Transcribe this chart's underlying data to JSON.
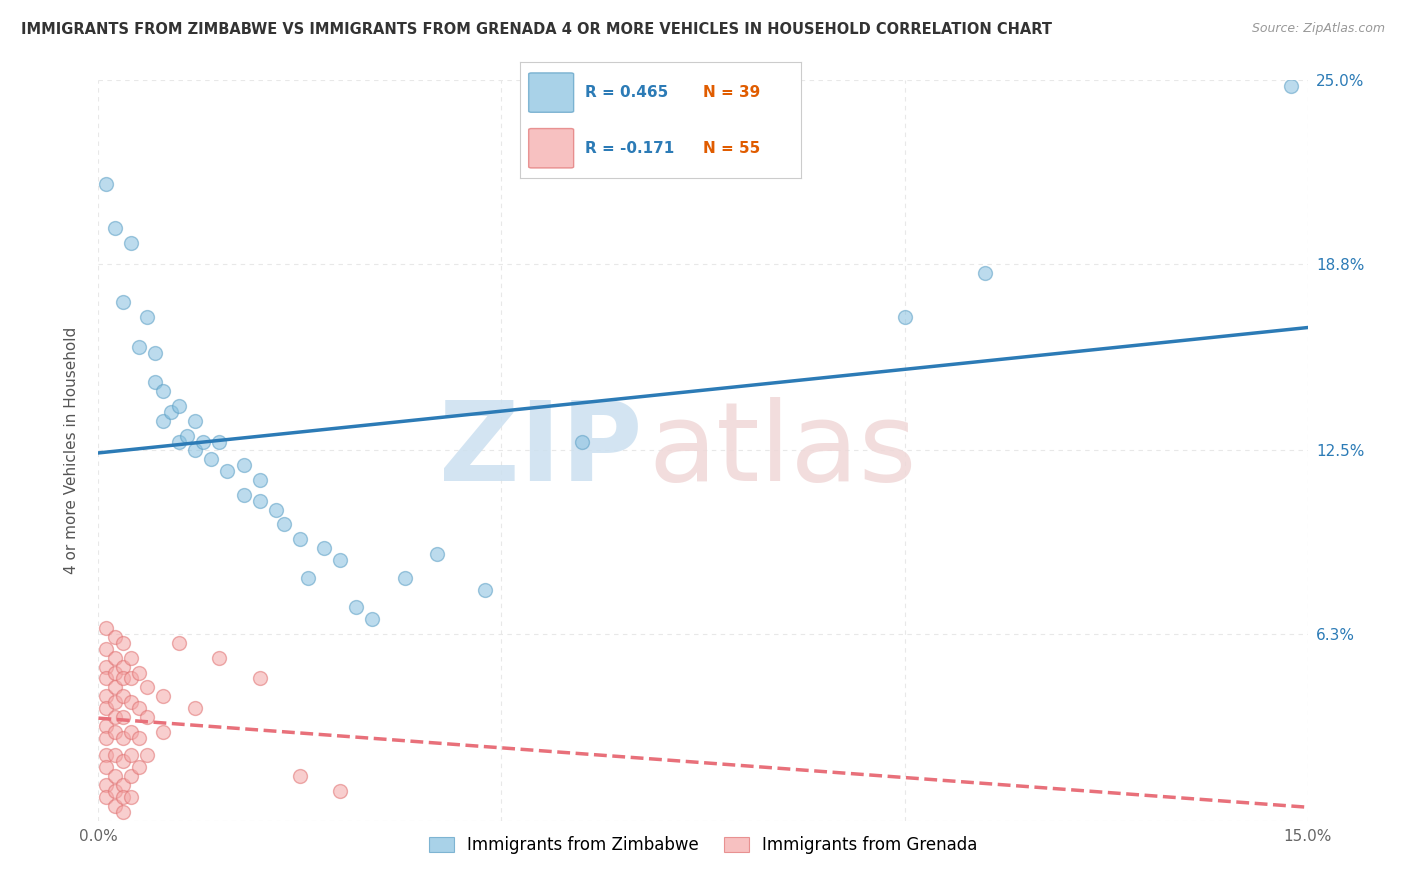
{
  "title": "IMMIGRANTS FROM ZIMBABWE VS IMMIGRANTS FROM GRENADA 4 OR MORE VEHICLES IN HOUSEHOLD CORRELATION CHART",
  "source": "Source: ZipAtlas.com",
  "ylabel": "4 or more Vehicles in Household",
  "xmin": 0.0,
  "xmax": 0.15,
  "ymin": 0.0,
  "ymax": 0.25,
  "ytick_vals": [
    0.0,
    0.063,
    0.125,
    0.188,
    0.25
  ],
  "ytick_labels_right": [
    "",
    "6.3%",
    "12.5%",
    "18.8%",
    "25.0%"
  ],
  "xtick_vals": [
    0.0,
    0.05,
    0.1,
    0.15
  ],
  "xtick_labels": [
    "0.0%",
    "",
    "",
    "15.0%"
  ],
  "zimbabwe_color": "#85bfdf",
  "zimbabwe_edge_color": "#5a9ec4",
  "grenada_color": "#f4a7a7",
  "grenada_edge_color": "#e07070",
  "reg_zim_color": "#2c7bb6",
  "reg_gren_color": "#e8707a",
  "zimbabwe_R": 0.465,
  "zimbabwe_N": 39,
  "grenada_R": -0.171,
  "grenada_N": 55,
  "background_color": "#ffffff",
  "grid_color": "#e8e8e8",
  "dot_size": 100,
  "dot_alpha": 0.55,
  "zimbabwe_points": [
    [
      0.001,
      0.215
    ],
    [
      0.002,
      0.2
    ],
    [
      0.003,
      0.175
    ],
    [
      0.004,
      0.195
    ],
    [
      0.005,
      0.16
    ],
    [
      0.006,
      0.17
    ],
    [
      0.007,
      0.148
    ],
    [
      0.007,
      0.158
    ],
    [
      0.008,
      0.135
    ],
    [
      0.008,
      0.145
    ],
    [
      0.009,
      0.138
    ],
    [
      0.01,
      0.128
    ],
    [
      0.01,
      0.14
    ],
    [
      0.011,
      0.13
    ],
    [
      0.012,
      0.125
    ],
    [
      0.012,
      0.135
    ],
    [
      0.013,
      0.128
    ],
    [
      0.014,
      0.122
    ],
    [
      0.015,
      0.128
    ],
    [
      0.016,
      0.118
    ],
    [
      0.018,
      0.11
    ],
    [
      0.018,
      0.12
    ],
    [
      0.02,
      0.108
    ],
    [
      0.02,
      0.115
    ],
    [
      0.022,
      0.105
    ],
    [
      0.023,
      0.1
    ],
    [
      0.025,
      0.095
    ],
    [
      0.026,
      0.082
    ],
    [
      0.028,
      0.092
    ],
    [
      0.03,
      0.088
    ],
    [
      0.032,
      0.072
    ],
    [
      0.034,
      0.068
    ],
    [
      0.038,
      0.082
    ],
    [
      0.042,
      0.09
    ],
    [
      0.048,
      0.078
    ],
    [
      0.06,
      0.128
    ],
    [
      0.1,
      0.17
    ],
    [
      0.11,
      0.185
    ],
    [
      0.148,
      0.248
    ]
  ],
  "grenada_points": [
    [
      0.001,
      0.065
    ],
    [
      0.001,
      0.058
    ],
    [
      0.001,
      0.052
    ],
    [
      0.001,
      0.048
    ],
    [
      0.001,
      0.042
    ],
    [
      0.001,
      0.038
    ],
    [
      0.001,
      0.032
    ],
    [
      0.001,
      0.028
    ],
    [
      0.001,
      0.022
    ],
    [
      0.001,
      0.018
    ],
    [
      0.001,
      0.012
    ],
    [
      0.001,
      0.008
    ],
    [
      0.002,
      0.062
    ],
    [
      0.002,
      0.055
    ],
    [
      0.002,
      0.05
    ],
    [
      0.002,
      0.045
    ],
    [
      0.002,
      0.04
    ],
    [
      0.002,
      0.035
    ],
    [
      0.002,
      0.03
    ],
    [
      0.002,
      0.022
    ],
    [
      0.002,
      0.015
    ],
    [
      0.002,
      0.01
    ],
    [
      0.002,
      0.005
    ],
    [
      0.003,
      0.06
    ],
    [
      0.003,
      0.052
    ],
    [
      0.003,
      0.048
    ],
    [
      0.003,
      0.042
    ],
    [
      0.003,
      0.035
    ],
    [
      0.003,
      0.028
    ],
    [
      0.003,
      0.02
    ],
    [
      0.003,
      0.012
    ],
    [
      0.003,
      0.008
    ],
    [
      0.003,
      0.003
    ],
    [
      0.004,
      0.055
    ],
    [
      0.004,
      0.048
    ],
    [
      0.004,
      0.04
    ],
    [
      0.004,
      0.03
    ],
    [
      0.004,
      0.022
    ],
    [
      0.004,
      0.015
    ],
    [
      0.004,
      0.008
    ],
    [
      0.005,
      0.05
    ],
    [
      0.005,
      0.038
    ],
    [
      0.005,
      0.028
    ],
    [
      0.005,
      0.018
    ],
    [
      0.006,
      0.045
    ],
    [
      0.006,
      0.035
    ],
    [
      0.006,
      0.022
    ],
    [
      0.008,
      0.042
    ],
    [
      0.008,
      0.03
    ],
    [
      0.01,
      0.06
    ],
    [
      0.012,
      0.038
    ],
    [
      0.015,
      0.055
    ],
    [
      0.02,
      0.048
    ],
    [
      0.025,
      0.015
    ],
    [
      0.03,
      0.01
    ]
  ]
}
